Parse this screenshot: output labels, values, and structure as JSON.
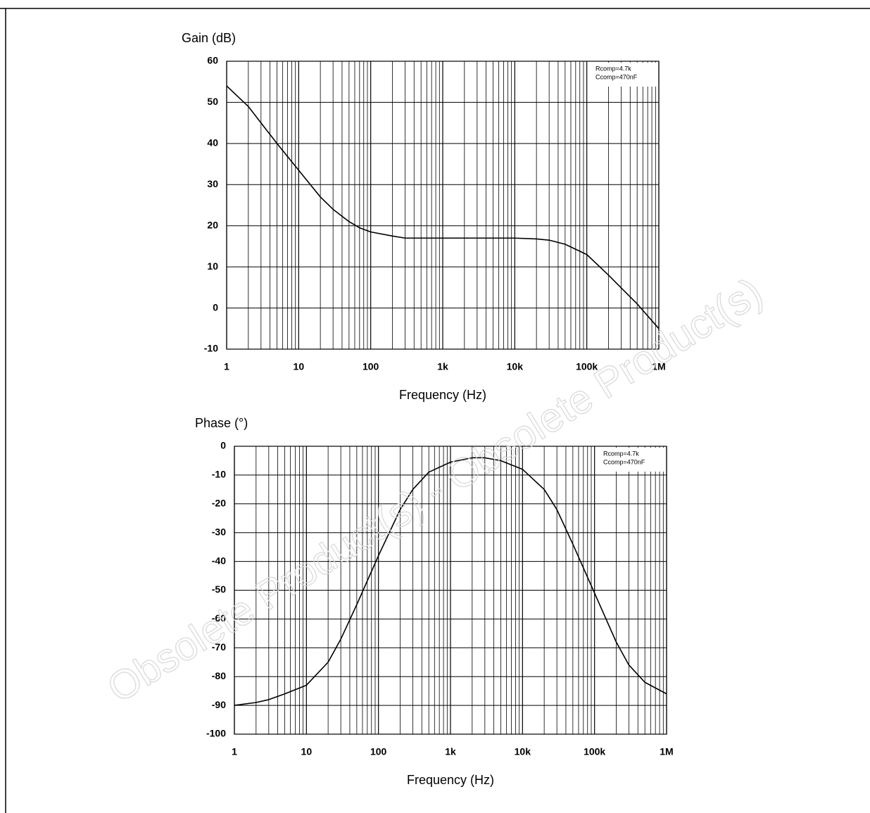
{
  "watermark": "Obsolete Product(s) - Obsolete Product(s)",
  "chart_data": [
    {
      "type": "line",
      "y_label": "Gain (dB)",
      "x_label": "Frequency (Hz)",
      "log_x": true,
      "grid": true,
      "minor_grid": true,
      "annotations": [
        "Rcomp=4.7k",
        "Ccomp=470nF"
      ],
      "x": [
        1,
        2,
        3,
        5,
        10,
        20,
        30,
        50,
        70,
        100,
        200,
        300,
        1000,
        3000,
        10000,
        20000,
        30000,
        50000,
        100000,
        200000,
        500000,
        1000000
      ],
      "series": [
        {
          "color": "#000000",
          "values": [
            54,
            49,
            45,
            40,
            33.5,
            27,
            24,
            21,
            19.5,
            18.5,
            17.5,
            17,
            17,
            17,
            17,
            16.8,
            16.5,
            15.5,
            13,
            8,
            1,
            -5
          ]
        }
      ],
      "xlim": [
        1,
        1000000
      ],
      "xticks": [
        1,
        10,
        100,
        {
          "value": 1000,
          "label": "1k"
        },
        {
          "value": 10000,
          "label": "10k"
        },
        {
          "value": 100000,
          "label": "100k"
        },
        {
          "value": 1000000,
          "label": "1M"
        }
      ],
      "ylim": [
        -10,
        60
      ],
      "yticks": [
        60,
        50,
        40,
        30,
        20,
        10,
        0,
        -10
      ]
    },
    {
      "type": "line",
      "y_label": "Phase (°)",
      "x_label": "Frequency (Hz)",
      "log_x": true,
      "grid": true,
      "minor_grid": true,
      "annotations": [
        "Rcomp=4.7k",
        "Ccomp=470nF"
      ],
      "x": [
        1,
        2,
        3,
        5,
        10,
        20,
        30,
        50,
        100,
        200,
        300,
        500,
        1000,
        2000,
        3000,
        5000,
        10000,
        20000,
        30000,
        50000,
        100000,
        200000,
        300000,
        500000,
        1000000
      ],
      "series": [
        {
          "color": "#000000",
          "values": [
            -90,
            -89,
            -88,
            -86,
            -83,
            -75,
            -67,
            -55,
            -38,
            -22,
            -15,
            -9,
            -5.5,
            -4,
            -4,
            -5,
            -8,
            -15,
            -22,
            -34,
            -51,
            -68,
            -76,
            -82,
            -86
          ]
        }
      ],
      "xlim": [
        1,
        1000000
      ],
      "xticks": [
        1,
        10,
        100,
        {
          "value": 1000,
          "label": "1k"
        },
        {
          "value": 10000,
          "label": "10k"
        },
        {
          "value": 100000,
          "label": "100k"
        },
        {
          "value": 1000000,
          "label": "1M"
        }
      ],
      "ylim": [
        -100,
        0
      ],
      "yticks": [
        0,
        -10,
        -20,
        -30,
        -40,
        -50,
        -60,
        -70,
        -80,
        -90,
        -100
      ]
    }
  ]
}
